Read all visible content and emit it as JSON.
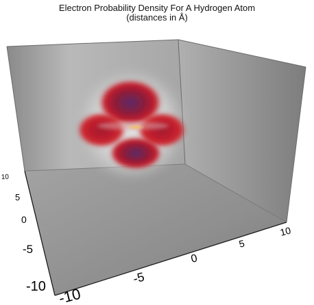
{
  "chart_data": {
    "type": "volume-rendering",
    "title": "Electron Probability Density For A Hydrogen Atom",
    "subtitle": "(distances in Å)",
    "xlabel": "",
    "ylabel": "",
    "zlabel": "",
    "x_axis": {
      "ticks": [
        -10,
        -5,
        0,
        5,
        10
      ],
      "tick_labels": [
        "-10",
        "-5",
        "0",
        "5",
        "10"
      ],
      "range": [
        -10,
        10
      ]
    },
    "y_axis": {
      "ticks": [
        -10,
        -5,
        0,
        5,
        10
      ],
      "tick_labels": [
        "-10",
        "-5",
        "0",
        "5",
        "10"
      ],
      "range": [
        -10,
        10
      ]
    },
    "z_axis": {
      "ticks": [],
      "range": [
        -10,
        10
      ]
    },
    "colors": {
      "density_high": "#b01c2a",
      "density_core": "#5a2a6a",
      "halo": "#d8d8d8",
      "box_wall": "#9a9a9a",
      "box_floor": "#8c8c8c"
    }
  }
}
